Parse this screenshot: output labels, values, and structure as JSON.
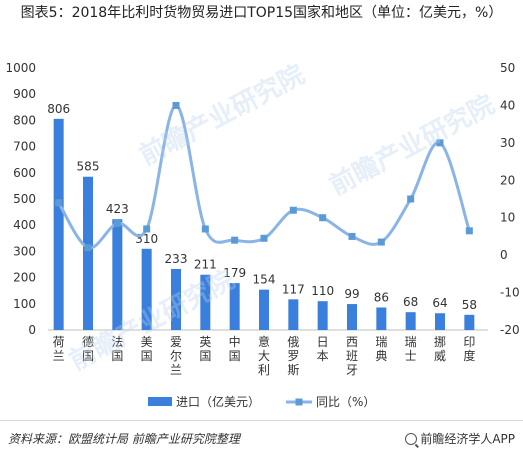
{
  "header": {
    "title": "图表5：2018年比利时货物贸易进口TOP15国家和地区（单位：亿美元，%）"
  },
  "footer": {
    "source": "资料来源：欧盟统计局 前瞻产业研究院整理",
    "brand": "前瞻经济学人APP"
  },
  "watermark": {
    "text": "前瞻产业研究院"
  },
  "chart_data": {
    "type": "bar",
    "categories": [
      "荷兰",
      "德国",
      "法国",
      "美国",
      "爱尔兰",
      "英国",
      "中国",
      "意大利",
      "俄罗斯",
      "日本",
      "西班牙",
      "瑞典",
      "瑞士",
      "挪威",
      "印度"
    ],
    "series": [
      {
        "name": "进口（亿美元）",
        "type": "bar",
        "axis": "left",
        "color": "#3a7fdc",
        "values": [
          806,
          585,
          423,
          310,
          233,
          211,
          179,
          154,
          117,
          110,
          99,
          86,
          68,
          64,
          58
        ]
      },
      {
        "name": "同比（%）",
        "type": "line",
        "axis": "right",
        "color": "#8ab4e8",
        "marker_color": "#5b9bd5",
        "values": [
          14.0,
          2.0,
          8.5,
          7.0,
          40.0,
          7.0,
          4.0,
          4.5,
          12.0,
          10.0,
          5.0,
          3.5,
          15.0,
          30.0,
          6.5
        ]
      }
    ],
    "y_left": {
      "min": 0,
      "max": 1000,
      "ticks": [
        0,
        100,
        200,
        300,
        400,
        500,
        600,
        700,
        800,
        900,
        1000
      ]
    },
    "y_right": {
      "min": -20,
      "max": 50,
      "ticks": [
        -20,
        -10,
        0,
        10,
        20,
        30,
        40,
        50
      ]
    },
    "data_labels": true,
    "legend_position": "bottom",
    "grid": false
  }
}
